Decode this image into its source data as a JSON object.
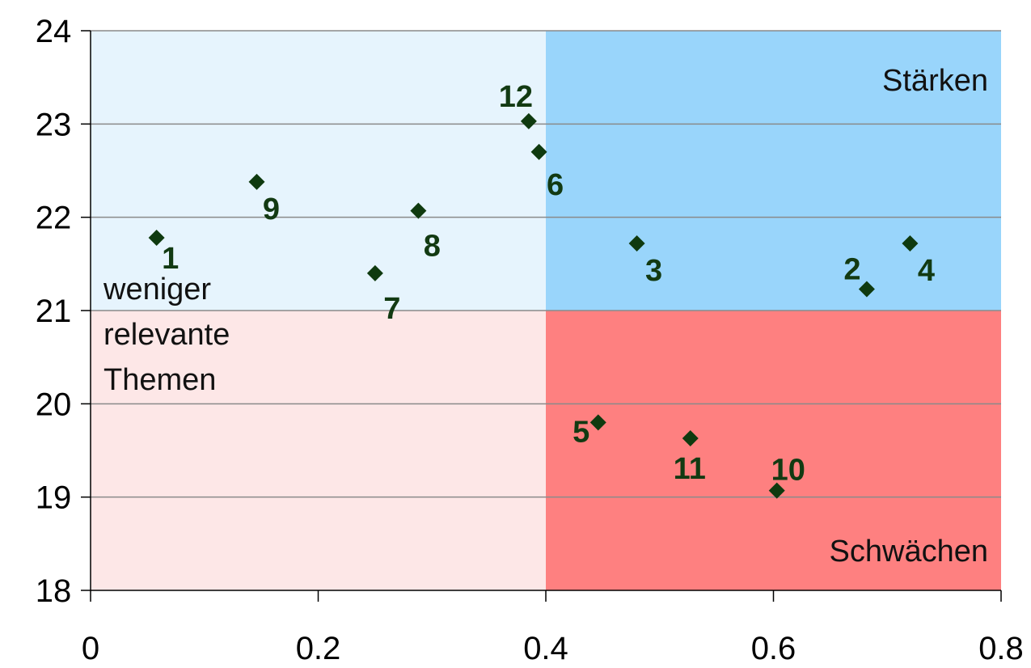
{
  "chart_data": {
    "type": "scatter",
    "title": "",
    "xlabel": "",
    "ylabel": "",
    "xlim": [
      0,
      0.8
    ],
    "ylim": [
      18,
      24
    ],
    "x_ticks": [
      "0",
      "0.2",
      "0.4",
      "0.6",
      "0.8"
    ],
    "y_ticks": [
      "18",
      "19",
      "20",
      "21",
      "22",
      "23",
      "24"
    ],
    "grid": "horizontal",
    "quadrants": {
      "x_split": 0.4,
      "y_split": 21,
      "top_left": {
        "label": "",
        "color": "#e6f4fd"
      },
      "top_right": {
        "label": "Stärken",
        "color": "#99d5fb"
      },
      "bottom_left": {
        "label_lines": [
          "weniger",
          "relevante",
          "Themen"
        ],
        "color": "#fde7e7"
      },
      "bottom_right": {
        "label": "Schwächen",
        "color": "#fe8080"
      }
    },
    "marker_color": "#0f3a0f",
    "points": [
      {
        "label": "1",
        "x": 0.058,
        "y": 21.78
      },
      {
        "label": "2",
        "x": 0.682,
        "y": 21.23
      },
      {
        "label": "3",
        "x": 0.48,
        "y": 21.72
      },
      {
        "label": "4",
        "x": 0.72,
        "y": 21.72
      },
      {
        "label": "5",
        "x": 0.446,
        "y": 19.8
      },
      {
        "label": "6",
        "x": 0.394,
        "y": 22.7
      },
      {
        "label": "7",
        "x": 0.25,
        "y": 21.4
      },
      {
        "label": "8",
        "x": 0.288,
        "y": 22.07
      },
      {
        "label": "9",
        "x": 0.146,
        "y": 22.38
      },
      {
        "label": "10",
        "x": 0.603,
        "y": 19.07
      },
      {
        "label": "11",
        "x": 0.527,
        "y": 19.63
      },
      {
        "label": "12",
        "x": 0.385,
        "y": 23.03
      }
    ]
  }
}
